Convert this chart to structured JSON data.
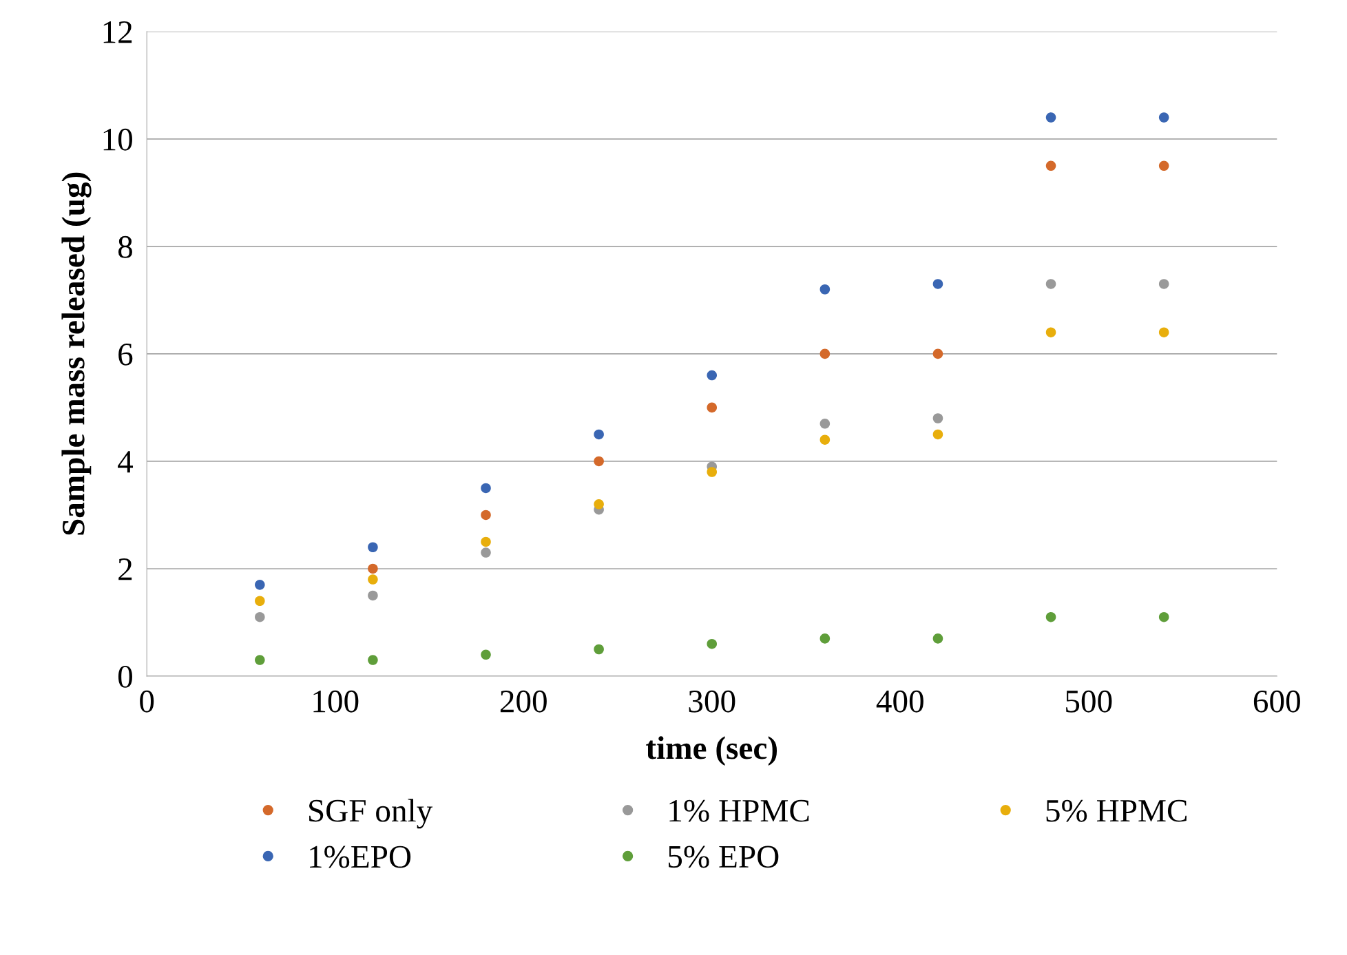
{
  "chart_data": {
    "type": "scatter",
    "xlabel": "time (sec)",
    "ylabel": "Sample mass released (ug)",
    "x": [
      60,
      120,
      180,
      240,
      300,
      360,
      420,
      480,
      540
    ],
    "series": [
      {
        "name": "SGF only",
        "color": "#d4692a",
        "values": [
          null,
          2.0,
          3.0,
          4.0,
          5.0,
          6.0,
          6.0,
          9.5,
          9.5
        ]
      },
      {
        "name": "1% HPMC",
        "color": "#999999",
        "values": [
          1.1,
          1.5,
          2.3,
          3.1,
          3.9,
          4.7,
          4.8,
          7.3,
          7.3
        ]
      },
      {
        "name": "5% HPMC",
        "color": "#e8ae0c",
        "values": [
          1.4,
          1.8,
          2.5,
          3.2,
          3.8,
          4.4,
          4.5,
          6.4,
          6.4
        ]
      },
      {
        "name": "1%EPO",
        "color": "#3a66b3",
        "values": [
          1.7,
          2.4,
          3.5,
          4.5,
          5.6,
          7.2,
          7.3,
          10.4,
          10.4
        ]
      },
      {
        "name": "5% EPO",
        "color": "#5f9e3a",
        "values": [
          0.3,
          0.3,
          0.4,
          0.5,
          0.6,
          0.7,
          0.7,
          1.1,
          1.1
        ]
      }
    ],
    "xlim": [
      0,
      600
    ],
    "xticks": [
      0,
      100,
      200,
      300,
      400,
      500,
      600
    ],
    "ylim": [
      0,
      12
    ],
    "yticks": [
      0,
      2,
      4,
      6,
      8,
      10,
      12
    ],
    "grid": "y",
    "legend": "bottom",
    "marker": "circle"
  }
}
